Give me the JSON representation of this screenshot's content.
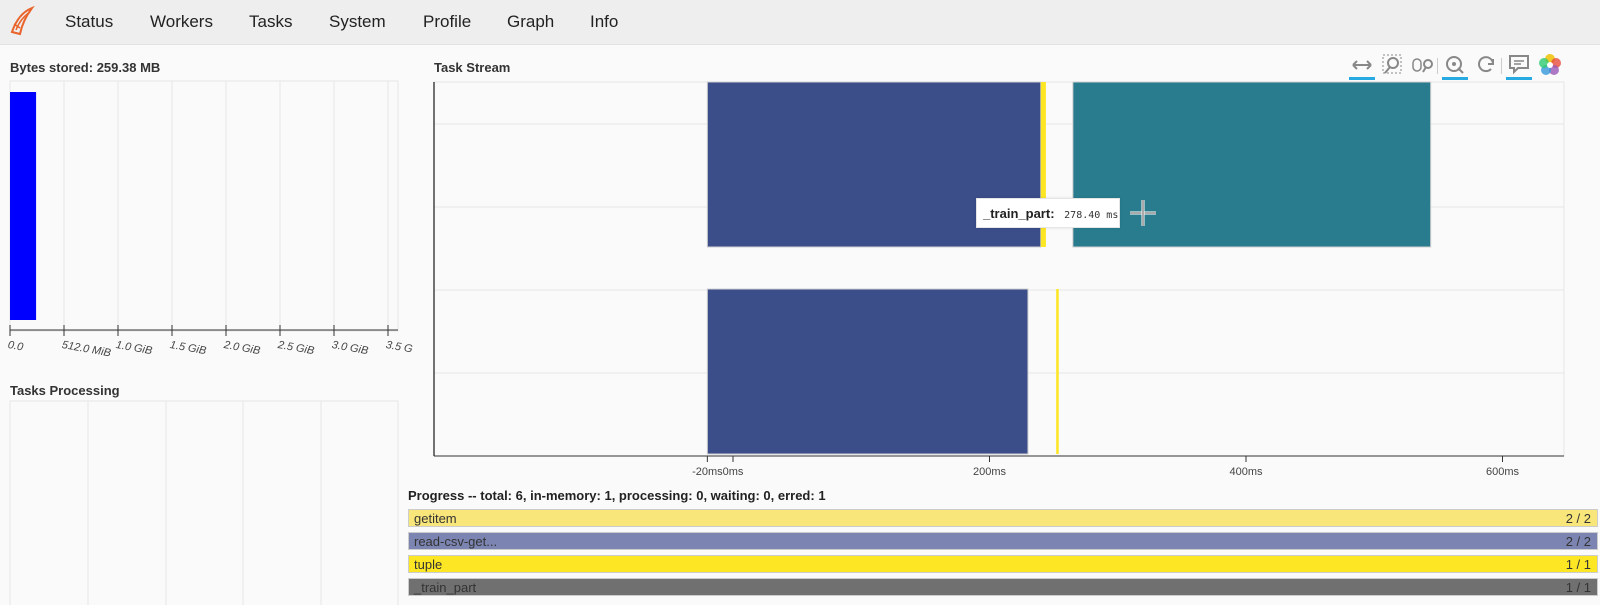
{
  "nav": {
    "items": [
      "Status",
      "Workers",
      "Tasks",
      "System",
      "Profile",
      "Graph",
      "Info"
    ]
  },
  "bytes_stored": {
    "title": "Bytes stored: 259.38 MB",
    "tick_labels": [
      "0.0",
      "512.0 MiB",
      "1.0 GiB",
      "1.5 GiB",
      "2.0 GiB",
      "2.5 GiB",
      "3.0 GiB",
      "3.5 G"
    ]
  },
  "tasks_processing": {
    "title": "Tasks Processing"
  },
  "task_stream": {
    "title": "Task Stream",
    "x_tick_labels": [
      "-20ms",
      "0ms",
      "200ms",
      "400ms",
      "600ms"
    ],
    "tooltip": {
      "name": "_train_part:",
      "value": "278.40 ms"
    }
  },
  "toolbar": {
    "tools": [
      "pan-icon",
      "box-zoom-icon",
      "wheel-zoom-icon",
      "reset-zoom-icon",
      "refresh-icon",
      "hover-icon",
      "bokeh-logo-icon"
    ]
  },
  "progress": {
    "title": "Progress -- total: 6, in-memory: 1, processing: 0, waiting: 0, erred: 1",
    "rows": [
      {
        "name": "getitem",
        "count": "2 / 2",
        "color": "#f9e67b"
      },
      {
        "name": "read-csv-get...",
        "count": "2 / 2",
        "color": "#7c85b2"
      },
      {
        "name": "tuple",
        "count": "1 / 1",
        "color": "#fde725"
      },
      {
        "name": "_train_part",
        "count": "1 / 1",
        "color": "#707070"
      }
    ]
  },
  "chart_data": [
    {
      "type": "bar",
      "title": "Bytes stored: 259.38 MB",
      "orientation": "horizontal",
      "values_mb": [
        259.38
      ],
      "x_ticks": [
        "0.0",
        "512.0 MiB",
        "1.0 GiB",
        "1.5 GiB",
        "2.0 GiB",
        "2.5 GiB",
        "3.0 GiB",
        "3.5 G"
      ],
      "xlim_mib": [
        0,
        3584
      ],
      "color": "#0000ff"
    },
    {
      "type": "bar",
      "title": "Task Stream",
      "x_unit": "ms",
      "x_ticks": [
        -20,
        0,
        200,
        400,
        600
      ],
      "xlim": [
        -24,
        600
      ],
      "tasks": [
        {
          "row": 0,
          "start": -20,
          "end": 240,
          "color": "#3b4e8a"
        },
        {
          "row": 0,
          "start": 240,
          "end": 244,
          "color": "#fde725"
        },
        {
          "row": 0,
          "start": 265,
          "end": 544,
          "color": "#287c8e"
        },
        {
          "row": 1,
          "start": -20,
          "end": 230,
          "color": "#3b4e8a"
        },
        {
          "row": 1,
          "start": 252,
          "end": 254,
          "color": "#fde725"
        }
      ]
    }
  ]
}
